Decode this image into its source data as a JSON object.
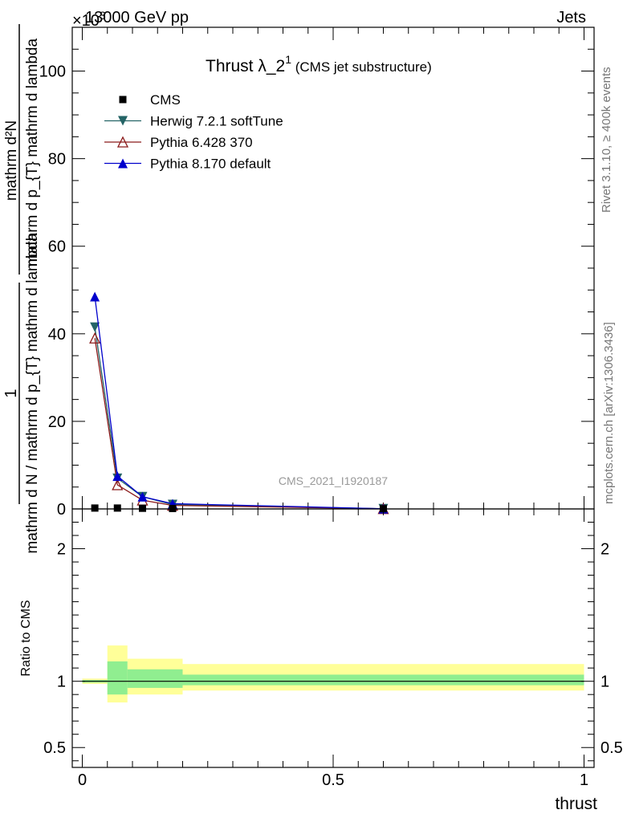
{
  "header": {
    "energy_label": "13000 GeV pp",
    "process_label": "Jets",
    "exponent_label": "×10",
    "exponent_power": "3",
    "analysis_id": "CMS_2021_I1920187",
    "rivet_label": "Rivet 3.1.10, ≥ 400k events",
    "mcplots_label": "mcplots.cern.ch [arXiv:1306.3436]"
  },
  "chart_data": [
    {
      "type": "line",
      "panel": "main",
      "title_main": "Thrust λ_2",
      "title_sup": "1",
      "title_sub": " (CMS jet substructure)",
      "ylabel_lines": [
        "1",
        "mathrm d N / mathrm d p_{T} mathrm d lambda",
        "mathrm d²N",
        "mathrm d p_{T} mathrm d lambda"
      ],
      "xlim": [
        -0.02,
        1.02
      ],
      "ylim": [
        0,
        110
      ],
      "y_ticks": [
        0,
        20,
        40,
        60,
        80,
        100
      ],
      "y_tick_labels": [
        "0",
        "20",
        "40",
        "60",
        "80",
        "100"
      ],
      "legend_position": "top-left",
      "series": [
        {
          "name": "CMS",
          "color": "#000000",
          "marker": "square",
          "x": [
            0.025,
            0.07,
            0.12,
            0.18,
            0.6
          ],
          "y": [
            0.2,
            0.2,
            0.15,
            0.1,
            0.05
          ]
        },
        {
          "name": "Herwig 7.2.1 softTune",
          "color": "#246466",
          "marker": "triangle-down",
          "x": [
            0.025,
            0.07,
            0.12,
            0.18,
            0.6
          ],
          "y": [
            41.5,
            7.0,
            2.8,
            1.0,
            0.05
          ]
        },
        {
          "name": "Pythia 6.428 370",
          "color": "#8b1a1a",
          "marker": "triangle-up-open",
          "x": [
            0.025,
            0.07,
            0.12,
            0.18,
            0.6
          ],
          "y": [
            39.0,
            5.5,
            2.0,
            0.8,
            0.05
          ]
        },
        {
          "name": "Pythia 8.170 default",
          "color": "#0000cc",
          "marker": "triangle-up",
          "x": [
            0.025,
            0.07,
            0.12,
            0.18,
            0.6
          ],
          "y": [
            48.5,
            7.5,
            2.8,
            1.2,
            0.05
          ]
        }
      ]
    },
    {
      "type": "area",
      "panel": "ratio",
      "ylabel": "Ratio to CMS",
      "xlabel": "thrust",
      "xlim": [
        -0.02,
        1.02
      ],
      "ylim": [
        0.35,
        2.3
      ],
      "y_ticks": [
        0.5,
        1,
        2
      ],
      "y_tick_labels": [
        "0.5",
        "1",
        "2"
      ],
      "x_ticks": [
        0,
        0.5,
        1
      ],
      "x_tick_labels": [
        "0",
        "0.5",
        "1"
      ],
      "bins": [
        {
          "lo": 0.0,
          "hi": 0.05,
          "stat_lo": 0.99,
          "stat_hi": 1.01,
          "tot_lo": 0.98,
          "tot_hi": 1.02
        },
        {
          "lo": 0.05,
          "hi": 0.09,
          "stat_lo": 0.9,
          "stat_hi": 1.15,
          "tot_lo": 0.84,
          "tot_hi": 1.27
        },
        {
          "lo": 0.09,
          "hi": 0.2,
          "stat_lo": 0.95,
          "stat_hi": 1.09,
          "tot_lo": 0.9,
          "tot_hi": 1.17
        },
        {
          "lo": 0.2,
          "hi": 1.0,
          "stat_lo": 0.97,
          "stat_hi": 1.05,
          "tot_lo": 0.93,
          "tot_hi": 1.13
        }
      ],
      "stat_color": "#90ee90",
      "total_color": "#ffff99"
    }
  ]
}
